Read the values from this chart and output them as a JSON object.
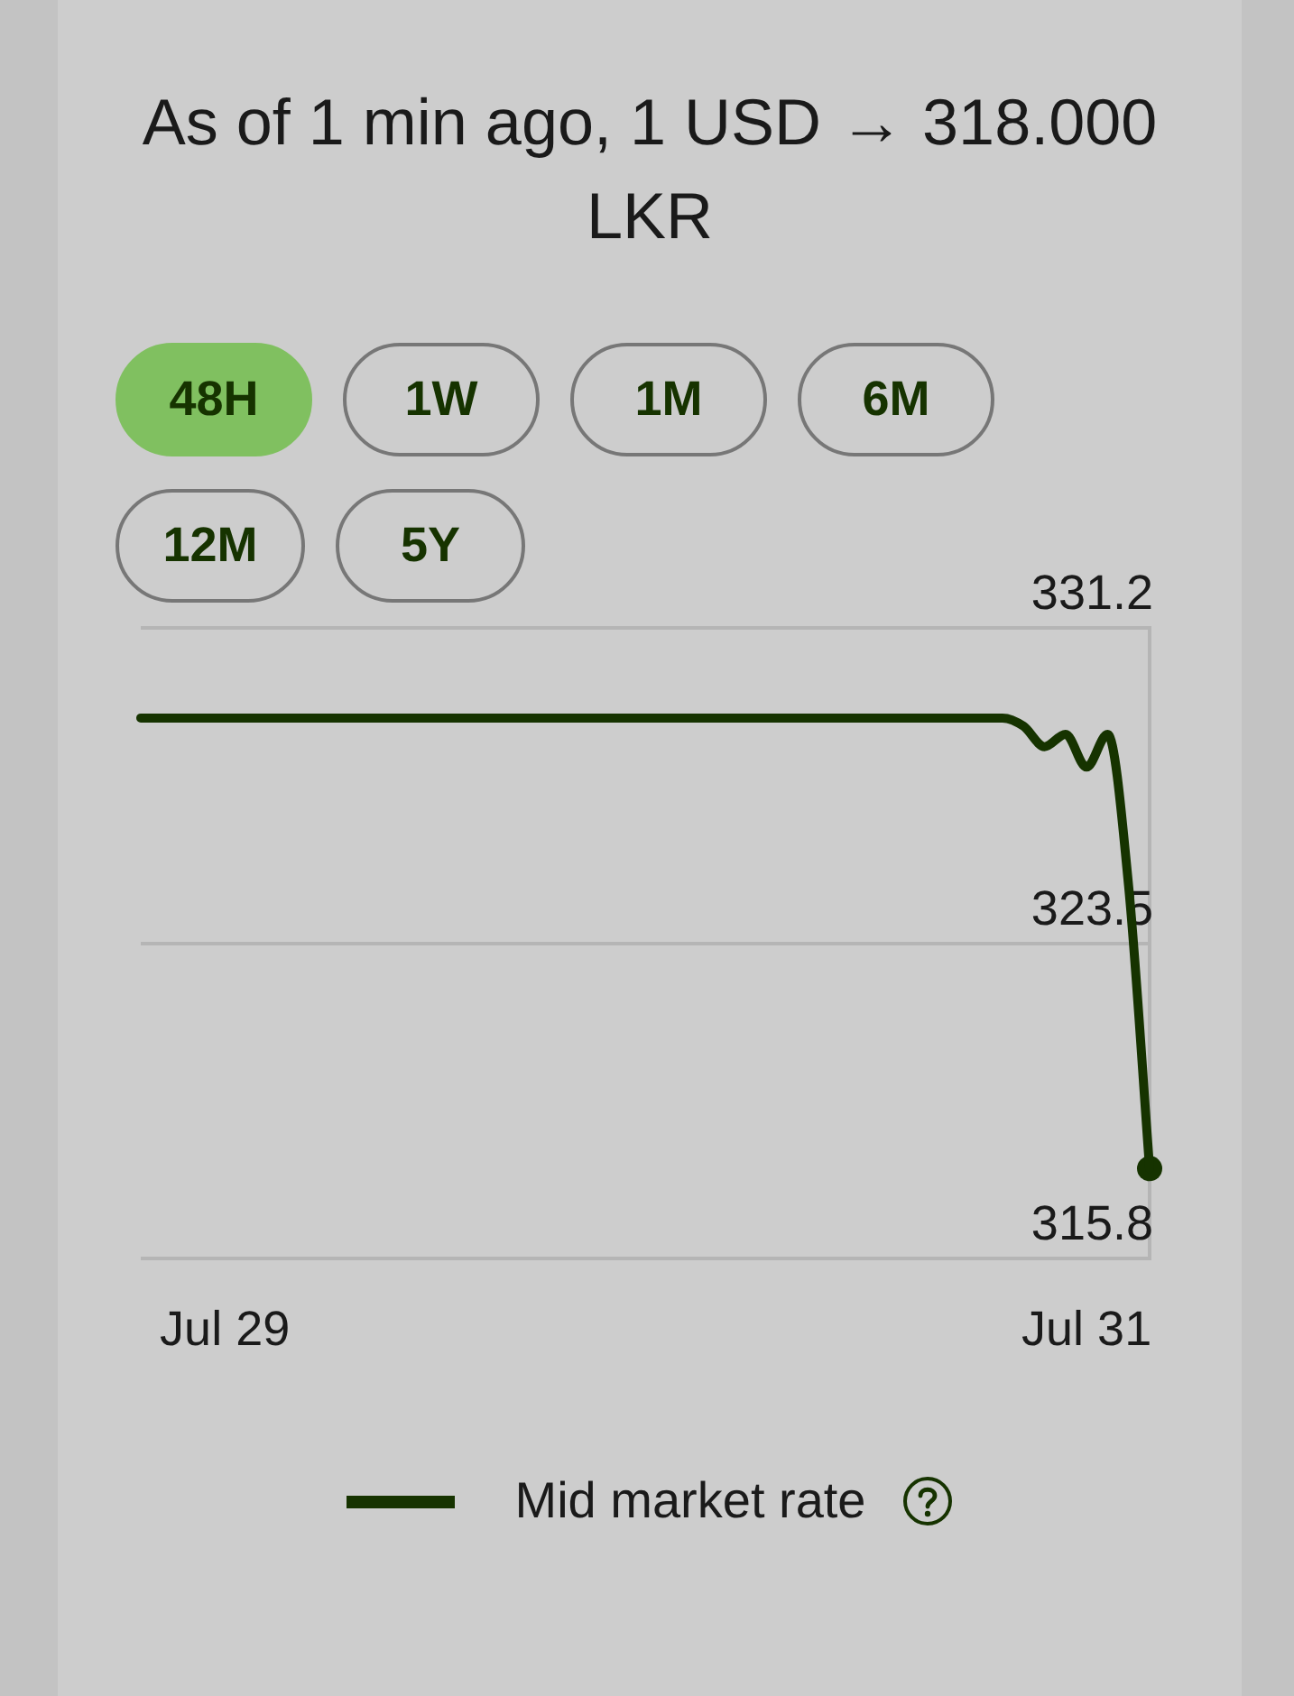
{
  "chart_data": {
    "type": "line",
    "title": "As of 1 min ago, 1 USD → 318.000 LKR",
    "annotations": [
      "48H",
      "1W",
      "1M",
      "6M",
      "12M",
      "5Y"
    ],
    "categories": [
      null,
      null,
      null,
      null,
      "Jul 29",
      null,
      null,
      null,
      null,
      null,
      null,
      null,
      null,
      null,
      null,
      null,
      null,
      null,
      null,
      null,
      null,
      null,
      null,
      null,
      null,
      null,
      null,
      null,
      null,
      null,
      null,
      null,
      null,
      null,
      null,
      null,
      null,
      null,
      null,
      null,
      null,
      null,
      null,
      null,
      null,
      "Jul 31",
      null,
      null,
      null
    ],
    "series": [
      {
        "name": "Mid market rate",
        "color": "#163300",
        "values": [
          329.0,
          329.0,
          329.0,
          329.0,
          329.0,
          329.0,
          329.0,
          329.0,
          329.0,
          329.0,
          329.0,
          329.0,
          329.0,
          329.0,
          329.0,
          329.0,
          329.0,
          329.0,
          329.0,
          329.0,
          329.0,
          329.0,
          329.0,
          329.0,
          329.0,
          329.0,
          329.0,
          329.0,
          329.0,
          329.0,
          329.0,
          329.0,
          329.0,
          329.0,
          329.0,
          329.0,
          329.0,
          329.0,
          329.0,
          329.0,
          329.0,
          329.0,
          328.8,
          328.3,
          328.6,
          327.8,
          328.6,
          324.9,
          318.0
        ]
      },
      {
        "type": "scatter",
        "marker": "circle",
        "color": "#163300",
        "values": [
          null,
          null,
          null,
          null,
          null,
          null,
          null,
          null,
          null,
          null,
          null,
          null,
          null,
          null,
          null,
          null,
          null,
          null,
          null,
          null,
          null,
          null,
          null,
          null,
          null,
          null,
          null,
          null,
          null,
          null,
          null,
          null,
          null,
          null,
          null,
          null,
          null,
          null,
          null,
          null,
          null,
          null,
          null,
          null,
          null,
          null,
          null,
          null,
          318.0
        ]
      }
    ],
    "ylim": [
      315.8,
      331.2
    ],
    "yticks": [
      315.8,
      323.5,
      331.2
    ],
    "grid": "y",
    "legend": "bottom"
  }
}
